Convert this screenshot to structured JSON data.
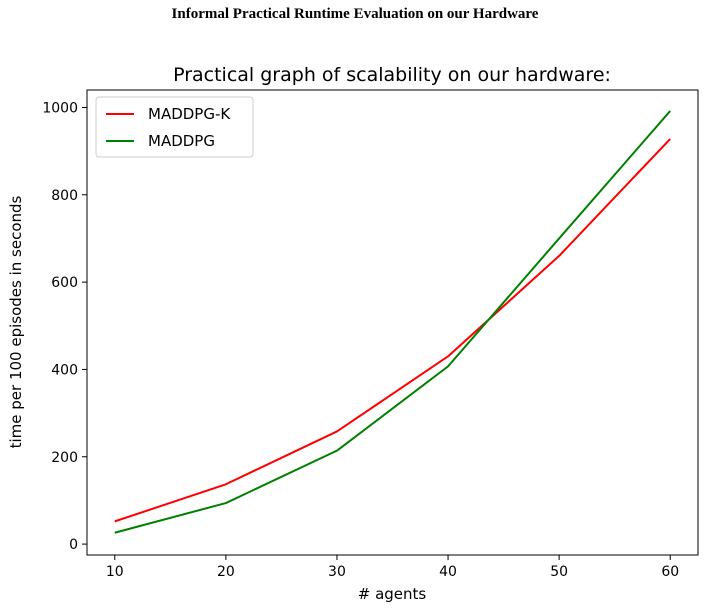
{
  "page": {
    "heading": "Informal Practical Runtime Evaluation on our Hardware"
  },
  "chart_data": {
    "type": "line",
    "title": "Practical graph of scalability on our hardware:",
    "xlabel": "# agents",
    "ylabel": "time per 100 episodes in seconds",
    "x": [
      10,
      20,
      30,
      40,
      50,
      60
    ],
    "xticks": [
      "10",
      "20",
      "30",
      "40",
      "50",
      "60"
    ],
    "yticks": [
      "0",
      "200",
      "400",
      "600",
      "800",
      "1000"
    ],
    "xlim": [
      7.5,
      62.5
    ],
    "ylim": [
      -25,
      1040
    ],
    "grid": false,
    "legend_position": "upper-left",
    "series": [
      {
        "name": "MADDPG-K",
        "color": "#ff0000",
        "values": [
          52,
          137,
          258,
          430,
          660,
          928
        ]
      },
      {
        "name": "MADDPG",
        "color": "#008000",
        "values": [
          26,
          94,
          214,
          407,
          700,
          992
        ]
      }
    ]
  }
}
